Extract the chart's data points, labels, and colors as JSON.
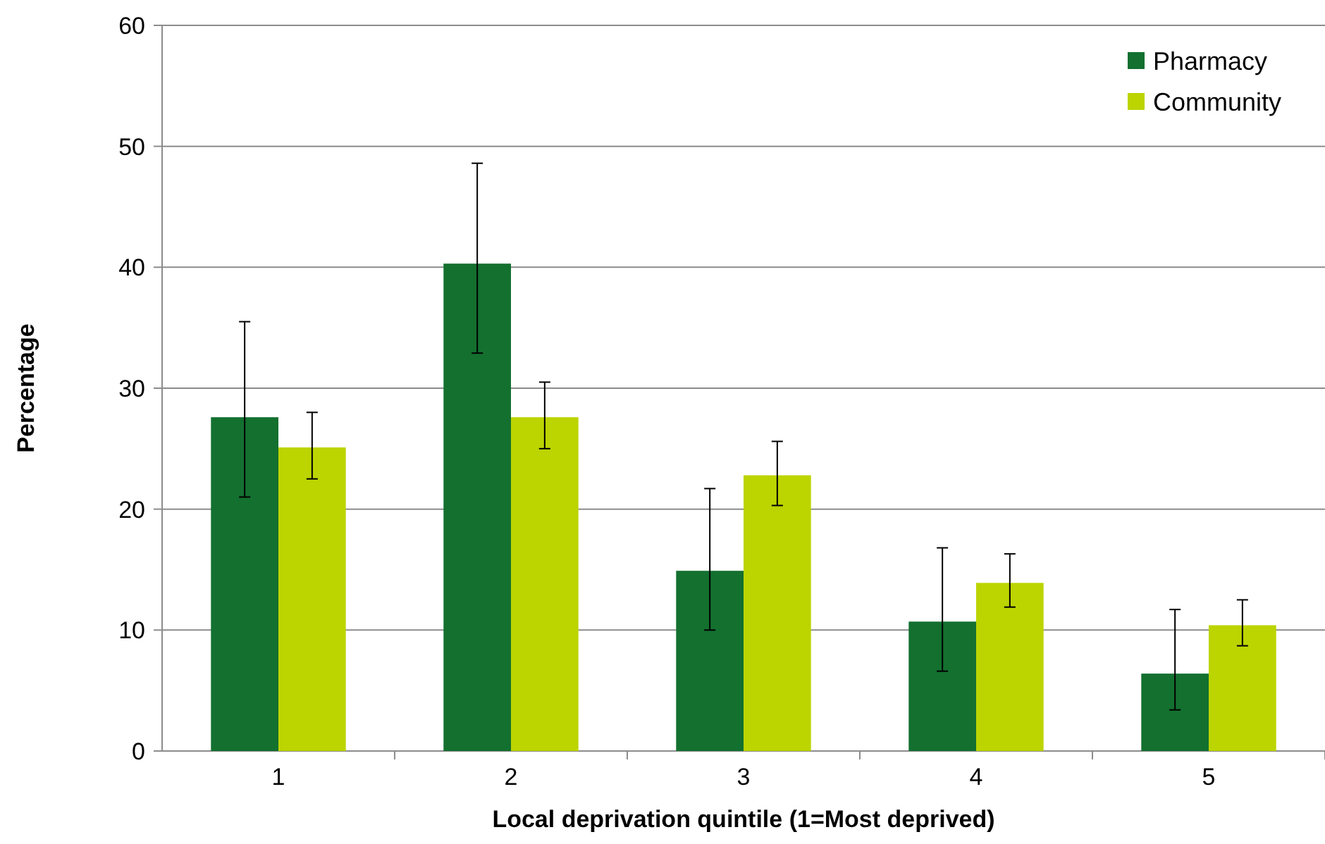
{
  "chart_data": {
    "type": "bar",
    "xlabel": "Local deprivation quintile (1=Most deprived)",
    "ylabel": "Percentage",
    "categories": [
      "1",
      "2",
      "3",
      "4",
      "5"
    ],
    "series": [
      {
        "name": "Pharmacy",
        "color": "#13702f",
        "values": [
          27.6,
          40.3,
          14.9,
          10.7,
          6.4
        ],
        "errors": [
          [
            21,
            35.5
          ],
          [
            32.9,
            48.6
          ],
          [
            10,
            21.7
          ],
          [
            6.6,
            16.8
          ],
          [
            3.4,
            11.7
          ]
        ]
      },
      {
        "name": "Community",
        "color": "#bcd400",
        "values": [
          25.1,
          27.6,
          22.8,
          13.9,
          10.4
        ],
        "errors": [
          [
            22.5,
            28
          ],
          [
            25,
            30.5
          ],
          [
            20.3,
            25.6
          ],
          [
            11.9,
            16.3
          ],
          [
            8.7,
            12.5
          ]
        ]
      }
    ],
    "ylim": [
      0,
      60
    ],
    "yticks": [
      0,
      10,
      20,
      30,
      40,
      50,
      60
    ],
    "grid": "y",
    "legend": "top right"
  }
}
